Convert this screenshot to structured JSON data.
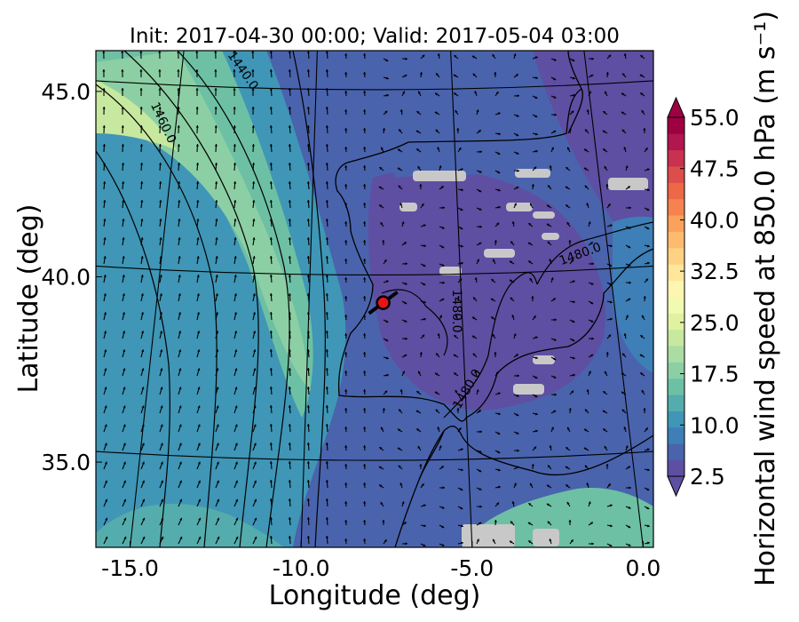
{
  "chart_data": {
    "type": "heatmap",
    "title": "Init: 2017-04-30 00:00; Valid: 2017-05-04 03:00",
    "xlabel": "Longitude (deg)",
    "ylabel": "Latitude (deg)",
    "x_ticks": [
      "-15.0",
      "-10.0",
      "-5.0",
      "0.0"
    ],
    "y_ticks": [
      "45.0",
      "40.0",
      "35.0"
    ],
    "xlim": [
      -16.0,
      0.3
    ],
    "ylim": [
      32.7,
      46.1
    ],
    "colorbar": {
      "label": "Horizontal wind speed at 850.0 hPa (m s⁻¹)",
      "ticks": [
        "55.0",
        "47.5",
        "40.0",
        "32.5",
        "25.0",
        "17.5",
        "10.0",
        "2.5"
      ],
      "min": 2.5,
      "max": 55.0,
      "extend": "both",
      "colors": [
        "#5e4fa2",
        "#4a63ad",
        "#3d7fb6",
        "#3f96b6",
        "#55acac",
        "#6dc0a4",
        "#8ccfa4",
        "#aadca4",
        "#c7e89f",
        "#e0f2a0",
        "#f2f9b0",
        "#fef6b0",
        "#fee69a",
        "#fdd283",
        "#fdbc6d",
        "#fba15c",
        "#f6834f",
        "#ec6847",
        "#dc4d4c",
        "#c83150",
        "#b0174e",
        "#9e0142"
      ]
    },
    "contours": [
      {
        "label": "1440.0"
      },
      {
        "label": "1460.0"
      },
      {
        "label": "1480.0"
      },
      {
        "label": "1480.0"
      },
      {
        "label": "1480.0"
      }
    ],
    "marker": {
      "lon": -7.6,
      "lat": 39.3,
      "color": "#e8141b"
    },
    "grid": true
  }
}
